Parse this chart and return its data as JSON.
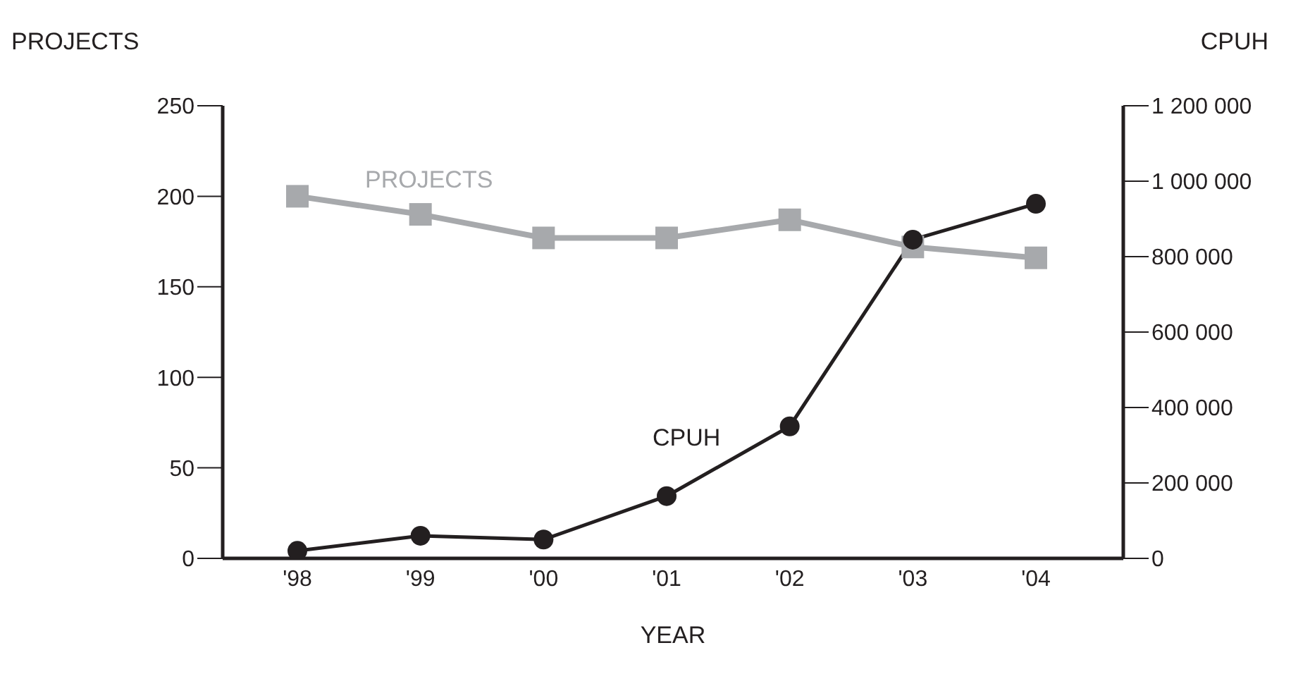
{
  "chart_data": {
    "type": "line",
    "xlabel": "YEAR",
    "ylabel": "PROJECTS",
    "y2label": "CPUH",
    "categories": [
      "'98",
      "'99",
      "'00",
      "'01",
      "'02",
      "'03",
      "'04"
    ],
    "series": [
      {
        "name": "PROJECTS",
        "color": "#a7a9ac",
        "marker": "square",
        "values": [
          200,
          190,
          177,
          177,
          187,
          172,
          166
        ]
      },
      {
        "name": "CPUH",
        "color": "#231f20",
        "marker": "circle",
        "axis": "y2",
        "values": [
          20000,
          60000,
          50000,
          165000,
          350000,
          845000,
          940000
        ]
      }
    ],
    "ylim": [
      0,
      250
    ],
    "yticks": [
      0,
      50,
      100,
      150,
      200,
      250
    ],
    "y2lim": [
      0,
      1200000
    ],
    "y2ticks": [
      0,
      {
        "value": 200000,
        "label": "200 000"
      },
      {
        "value": 400000,
        "label": "400 000"
      },
      {
        "value": 600000,
        "label": "600 000"
      },
      {
        "value": 800000,
        "label": "800 000"
      },
      {
        "value": 1000000,
        "label": "1 000 000"
      },
      {
        "value": 1200000,
        "label": "1 200 000"
      }
    ],
    "grid": false,
    "legend": false
  }
}
